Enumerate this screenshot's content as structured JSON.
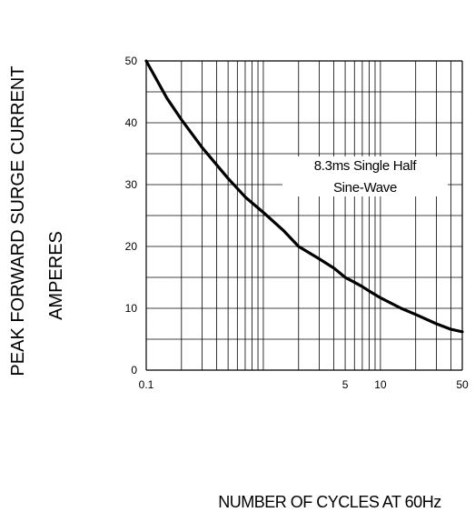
{
  "chart_data": {
    "type": "line",
    "title": "",
    "xlabel": "NUMBER OF CYCLES AT 60Hz",
    "ylabel_lines": [
      "PEAK FORWARD SURGE CURRENT",
      "AMPERES"
    ],
    "x_scale": "log",
    "xlim": [
      0.1,
      50
    ],
    "ylim": [
      0,
      50
    ],
    "x_tick_labels": [
      "0.1",
      "5",
      "10",
      "50"
    ],
    "x_tick_values": [
      0.1,
      5,
      10,
      50
    ],
    "y_tick_labels": [
      "0",
      "10",
      "20",
      "30",
      "40",
      "50"
    ],
    "y_tick_values": [
      0,
      10,
      20,
      30,
      40,
      50
    ],
    "grid": true,
    "annotation": [
      "8.3ms Single Half",
      "Sine-Wave"
    ],
    "series": [
      {
        "x": [
          0.1,
          0.15,
          0.2,
          0.3,
          0.5,
          0.7,
          1,
          1.5,
          2,
          3,
          4,
          5,
          6,
          7,
          8,
          10,
          15,
          20,
          30,
          40,
          50
        ],
        "values": [
          50,
          44,
          40.5,
          36,
          31,
          28,
          25.5,
          22.5,
          20,
          18,
          16.5,
          15,
          14.2,
          13.5,
          12.8,
          11.7,
          10,
          9,
          7.5,
          6.6,
          6.2
        ]
      }
    ],
    "colors": {
      "line": "#000000",
      "grid": "#000000"
    }
  }
}
